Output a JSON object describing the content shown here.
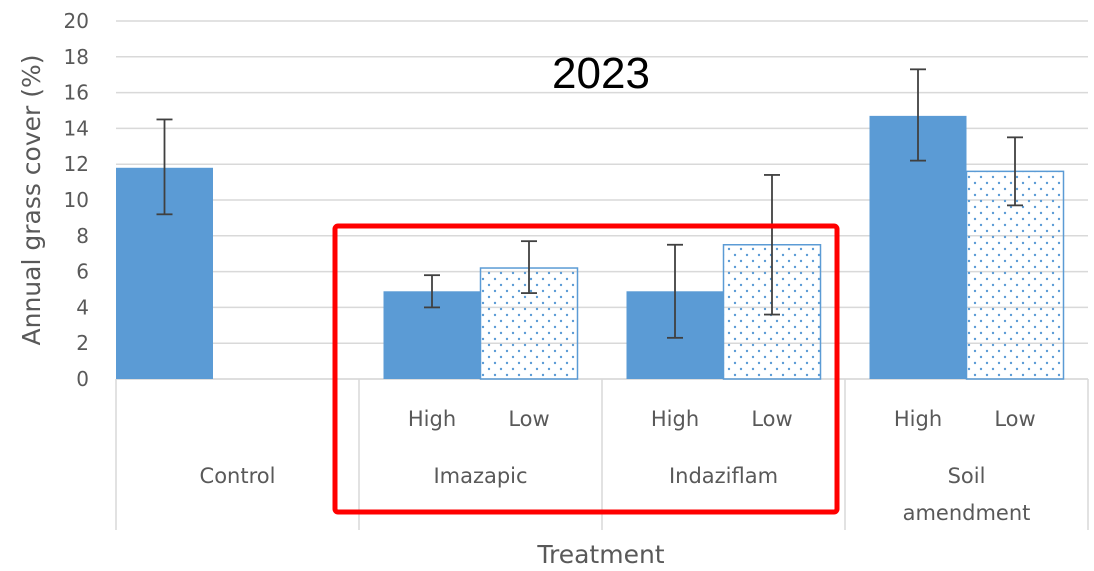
{
  "chart_data": {
    "type": "bar",
    "title": "2023",
    "xlabel": "Treatment",
    "ylabel": "Annual grass cover (%)",
    "ylim": [
      0,
      20
    ],
    "y_ticks": [
      "0",
      "2",
      "4",
      "6",
      "8",
      "10",
      "12",
      "14",
      "16",
      "18",
      "20"
    ],
    "grid": true,
    "groups": [
      {
        "label": "Control",
        "bars": [
          {
            "level": "",
            "value": 11.8,
            "err_low": 9.2,
            "err_high": 14.5,
            "pattern": "solid"
          }
        ]
      },
      {
        "label": "Imazapic",
        "bars": [
          {
            "level": "High",
            "value": 4.9,
            "err_low": 4.0,
            "err_high": 5.8,
            "pattern": "solid"
          },
          {
            "level": "Low",
            "value": 6.2,
            "err_low": 4.8,
            "err_high": 7.7,
            "pattern": "dotted"
          }
        ]
      },
      {
        "label": "Indaziflam",
        "bars": [
          {
            "level": "High",
            "value": 4.9,
            "err_low": 2.3,
            "err_high": 7.5,
            "pattern": "solid"
          },
          {
            "level": "Low",
            "value": 7.5,
            "err_low": 3.6,
            "err_high": 11.4,
            "pattern": "dotted"
          }
        ]
      },
      {
        "label": "Soil amendment",
        "label_lines": [
          "Soil",
          "amendment"
        ],
        "bars": [
          {
            "level": "High",
            "value": 14.7,
            "err_low": 12.2,
            "err_high": 17.3,
            "pattern": "solid"
          },
          {
            "level": "Low",
            "value": 11.6,
            "err_low": 9.7,
            "err_high": 13.5,
            "pattern": "dotted"
          }
        ]
      }
    ],
    "highlight": {
      "groups": [
        "Imazapic",
        "Indaziflam"
      ],
      "color": "#FF0000"
    },
    "colors": {
      "bar": "#5B9BD5",
      "dots": "#5B9BD5",
      "grid": "#D9D9D9",
      "error_bar": "#404040",
      "text": "#595959"
    }
  }
}
